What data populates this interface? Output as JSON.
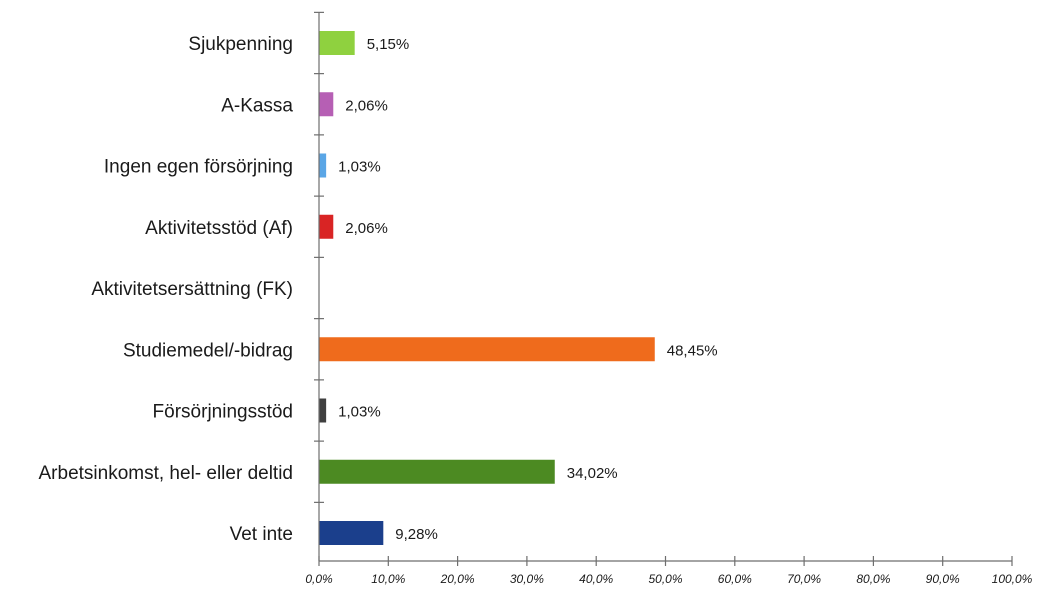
{
  "chart_data": {
    "type": "bar",
    "orientation": "horizontal",
    "title": "",
    "xlabel": "",
    "ylabel": "",
    "xlim": [
      0,
      100
    ],
    "grid": false,
    "legend": "none",
    "categories": [
      "Sjukpenning",
      "A-Kassa",
      "Ingen egen försörjning",
      "Aktivitetsstöd (Af)",
      "Aktivitetsersättning (FK)",
      "Studiemedel/-bidrag",
      "Försörjningsstöd",
      "Arbetsinkomst, hel- eller deltid",
      "Vet inte"
    ],
    "values": [
      5.15,
      2.06,
      1.03,
      2.06,
      0,
      48.45,
      1.03,
      34.02,
      9.28
    ],
    "value_labels": [
      "5,15%",
      "2,06%",
      "1,03%",
      "2,06%",
      "",
      "48,45%",
      "1,03%",
      "34,02%",
      "9,28%"
    ],
    "colors": [
      "#8fd13f",
      "#b65fb4",
      "#5aa6e6",
      "#d92424",
      "#cccccc",
      "#ef6b1c",
      "#3f3f3f",
      "#4c8a22",
      "#1b3f8c"
    ],
    "x_ticks": [
      0,
      10,
      20,
      30,
      40,
      50,
      60,
      70,
      80,
      90,
      100
    ],
    "x_tick_labels": [
      "0,0%",
      "10,0%",
      "20,0%",
      "30,0%",
      "40,0%",
      "50,0%",
      "60,0%",
      "70,0%",
      "80,0%",
      "90,0%",
      "100,0%"
    ]
  }
}
